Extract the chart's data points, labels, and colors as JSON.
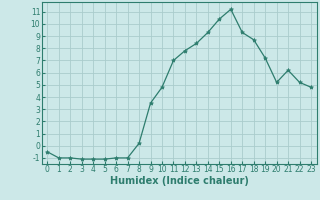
{
  "x": [
    0,
    1,
    2,
    3,
    4,
    5,
    6,
    7,
    8,
    9,
    10,
    11,
    12,
    13,
    14,
    15,
    16,
    17,
    18,
    19,
    20,
    21,
    22,
    23
  ],
  "y": [
    -0.5,
    -1.0,
    -1.0,
    -1.1,
    -1.1,
    -1.1,
    -1.0,
    -1.0,
    0.2,
    3.5,
    4.8,
    7.0,
    7.8,
    8.4,
    9.3,
    10.4,
    11.2,
    9.3,
    8.7,
    7.2,
    5.2,
    6.2,
    5.2,
    4.8
  ],
  "xlabel": "Humidex (Indice chaleur)",
  "line_color": "#2e7d6e",
  "marker": "*",
  "marker_size": 3,
  "bg_color": "#cce8e8",
  "grid_color": "#aacccc",
  "ylim": [
    -1.5,
    11.8
  ],
  "xlim": [
    -0.5,
    23.5
  ],
  "yticks": [
    -1,
    0,
    1,
    2,
    3,
    4,
    5,
    6,
    7,
    8,
    9,
    10,
    11
  ],
  "xticks": [
    0,
    1,
    2,
    3,
    4,
    5,
    6,
    7,
    8,
    9,
    10,
    11,
    12,
    13,
    14,
    15,
    16,
    17,
    18,
    19,
    20,
    21,
    22,
    23
  ],
  "tick_label_size": 5.5,
  "xlabel_size": 7,
  "xlabel_weight": "bold"
}
